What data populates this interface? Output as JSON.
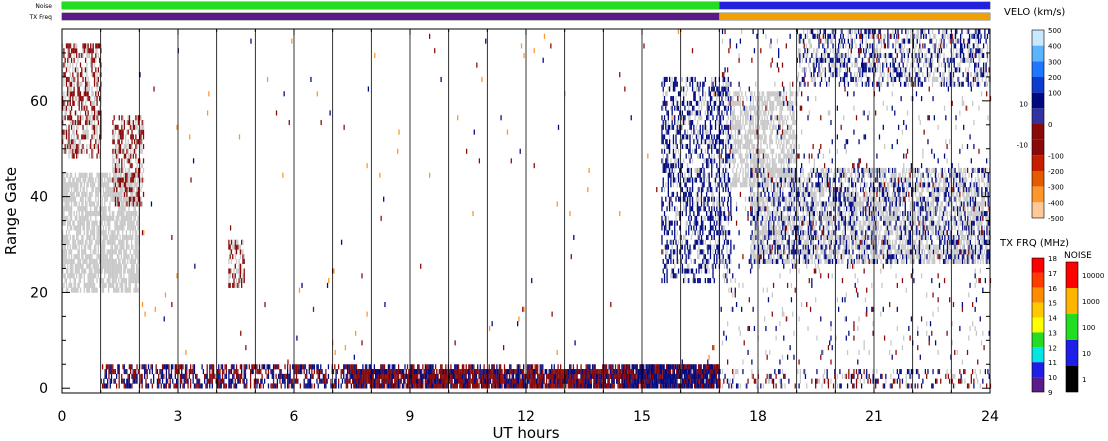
{
  "chart_data": {
    "type": "heatmap",
    "xlabel": "UT hours",
    "ylabel": "Range Gate",
    "xlim": [
      0,
      24
    ],
    "ylim": [
      -1,
      75
    ],
    "x_ticks": [
      "0",
      "3",
      "6",
      "9",
      "12",
      "15",
      "18",
      "21",
      "24"
    ],
    "y_ticks": [
      "0",
      "20",
      "40",
      "60"
    ],
    "grid": "vertical lines every 1 UT hour",
    "scan_time_hours": 0.033,
    "noise_row_label": "Noise",
    "txfrq_row_label": "TX Freq",
    "noise_strip": [
      {
        "from": 0,
        "to": 17,
        "color": "#22dd22"
      },
      {
        "from": 17,
        "to": 24,
        "color": "#2222dd"
      }
    ],
    "txfrq_strip": [
      {
        "from": 0,
        "to": 17,
        "color": "#5a1a8a"
      },
      {
        "from": 17,
        "to": 24,
        "color": "#f0a000"
      }
    ],
    "velocity_scale": {
      "title": "VELO (km/s)",
      "levels": [
        {
          "label": "500",
          "color": "#c8e8ff"
        },
        {
          "label": "400",
          "color": "#5ab4ff"
        },
        {
          "label": "300",
          "color": "#1e78ff"
        },
        {
          "label": "200",
          "color": "#0a3ccd"
        },
        {
          "label": "100",
          "color": "#000a80"
        },
        {
          "label": "10",
          "color": "#6e6ec8"
        },
        {
          "label": "0",
          "color": "#ffffff"
        },
        {
          "label": "-10",
          "color": "#8a0a0a"
        },
        {
          "label": "-100",
          "color": "#c81e00"
        },
        {
          "label": "-200",
          "color": "#e65a00"
        },
        {
          "label": "-300",
          "color": "#ff9628"
        },
        {
          "label": "-400",
          "color": "#ffc896"
        },
        {
          "label": "-500",
          "color": "#ffe6c8"
        }
      ]
    },
    "txfrq_scale": {
      "title": "TX FRQ (MHz)",
      "levels": [
        {
          "label": "18",
          "color": "#ff0000"
        },
        {
          "label": "17",
          "color": "#ff3c00"
        },
        {
          "label": "16",
          "color": "#ff8c00"
        },
        {
          "label": "15",
          "color": "#ffc800"
        },
        {
          "label": "14",
          "color": "#ffff00"
        },
        {
          "label": "13",
          "color": "#22dd22"
        },
        {
          "label": "12",
          "color": "#00e6e6"
        },
        {
          "label": "11",
          "color": "#1e1ee6"
        },
        {
          "label": "10",
          "color": "#5a1a8a"
        },
        {
          "label": "9",
          "color": "#000000"
        }
      ]
    },
    "noise_scale": {
      "title": "NOISE",
      "levels": [
        {
          "label": "10000",
          "color": "#ff0000"
        },
        {
          "label": "1000",
          "color": "#ffb400"
        },
        {
          "label": "100",
          "color": "#22dd22"
        },
        {
          "label": "10",
          "color": "#1e1ee6"
        },
        {
          "label": "1",
          "color": "#000000"
        }
      ]
    },
    "regions": [
      {
        "name": "near-range-mixed",
        "x": [
          1.0,
          17.0
        ],
        "y": [
          0,
          5
        ],
        "density": 0.55,
        "colors": [
          "#000a80",
          "#8a0a0a"
        ]
      },
      {
        "name": "near-range-dense-red",
        "x": [
          7.5,
          14.5
        ],
        "y": [
          0,
          4
        ],
        "density": 0.85,
        "colors": [
          "#8a0a0a",
          "#8a0a0a",
          "#000a80"
        ]
      },
      {
        "name": "near-range-dense-blue",
        "x": [
          14.5,
          17.0
        ],
        "y": [
          0,
          5
        ],
        "density": 0.85,
        "colors": [
          "#000a80",
          "#000a80",
          "#8a0a0a"
        ]
      },
      {
        "name": "near-range-late",
        "x": [
          17.0,
          24.0
        ],
        "y": [
          0,
          4
        ],
        "density": 0.25,
        "colors": [
          "#000a80",
          "#8a0a0a",
          "#c8c8c8"
        ]
      },
      {
        "name": "early-grey-band",
        "x": [
          0.0,
          2.0
        ],
        "y": [
          20,
          45
        ],
        "density": 0.7,
        "colors": [
          "#c8c8c8"
        ]
      },
      {
        "name": "early-red-upper",
        "x": [
          0.0,
          1.0
        ],
        "y": [
          48,
          72
        ],
        "density": 0.55,
        "colors": [
          "#8a0a0a",
          "#c8c8c8"
        ]
      },
      {
        "name": "early-red-mid",
        "x": [
          1.3,
          2.1
        ],
        "y": [
          38,
          57
        ],
        "density": 0.6,
        "colors": [
          "#8a0a0a",
          "#c8c8c8"
        ]
      },
      {
        "name": "patch-0430",
        "x": [
          4.3,
          4.7
        ],
        "y": [
          21,
          31
        ],
        "density": 0.6,
        "colors": [
          "#8a0a0a",
          "#c8c8c8"
        ]
      },
      {
        "name": "blue-slant",
        "x": [
          15.5,
          17.3
        ],
        "y": [
          22,
          65
        ],
        "density": 0.45,
        "colors": [
          "#000a80",
          "#000a80",
          "#c8c8c8"
        ]
      },
      {
        "name": "grey-upper-arm",
        "x": [
          17.3,
          19.0
        ],
        "y": [
          42,
          62
        ],
        "density": 0.55,
        "colors": [
          "#c8c8c8"
        ]
      },
      {
        "name": "grey-main-band",
        "x": [
          17.8,
          24.0
        ],
        "y": [
          26,
          46
        ],
        "density": 0.65,
        "colors": [
          "#c8c8c8",
          "#c8c8c8",
          "#000a80"
        ]
      },
      {
        "name": "grey-top-band",
        "x": [
          19.0,
          24.0
        ],
        "y": [
          63,
          75
        ],
        "density": 0.45,
        "colors": [
          "#c8c8c8",
          "#000a80"
        ]
      },
      {
        "name": "sparse-late",
        "x": [
          17.0,
          24.0
        ],
        "y": [
          5,
          75
        ],
        "density": 0.05,
        "colors": [
          "#000a80",
          "#8a0a0a",
          "#c8c8c8"
        ]
      },
      {
        "name": "sparse-day",
        "x": [
          2.0,
          17.0
        ],
        "y": [
          5,
          75
        ],
        "density": 0.004,
        "colors": [
          "#000a80",
          "#8a0a0a",
          "#ff9628"
        ]
      }
    ]
  }
}
